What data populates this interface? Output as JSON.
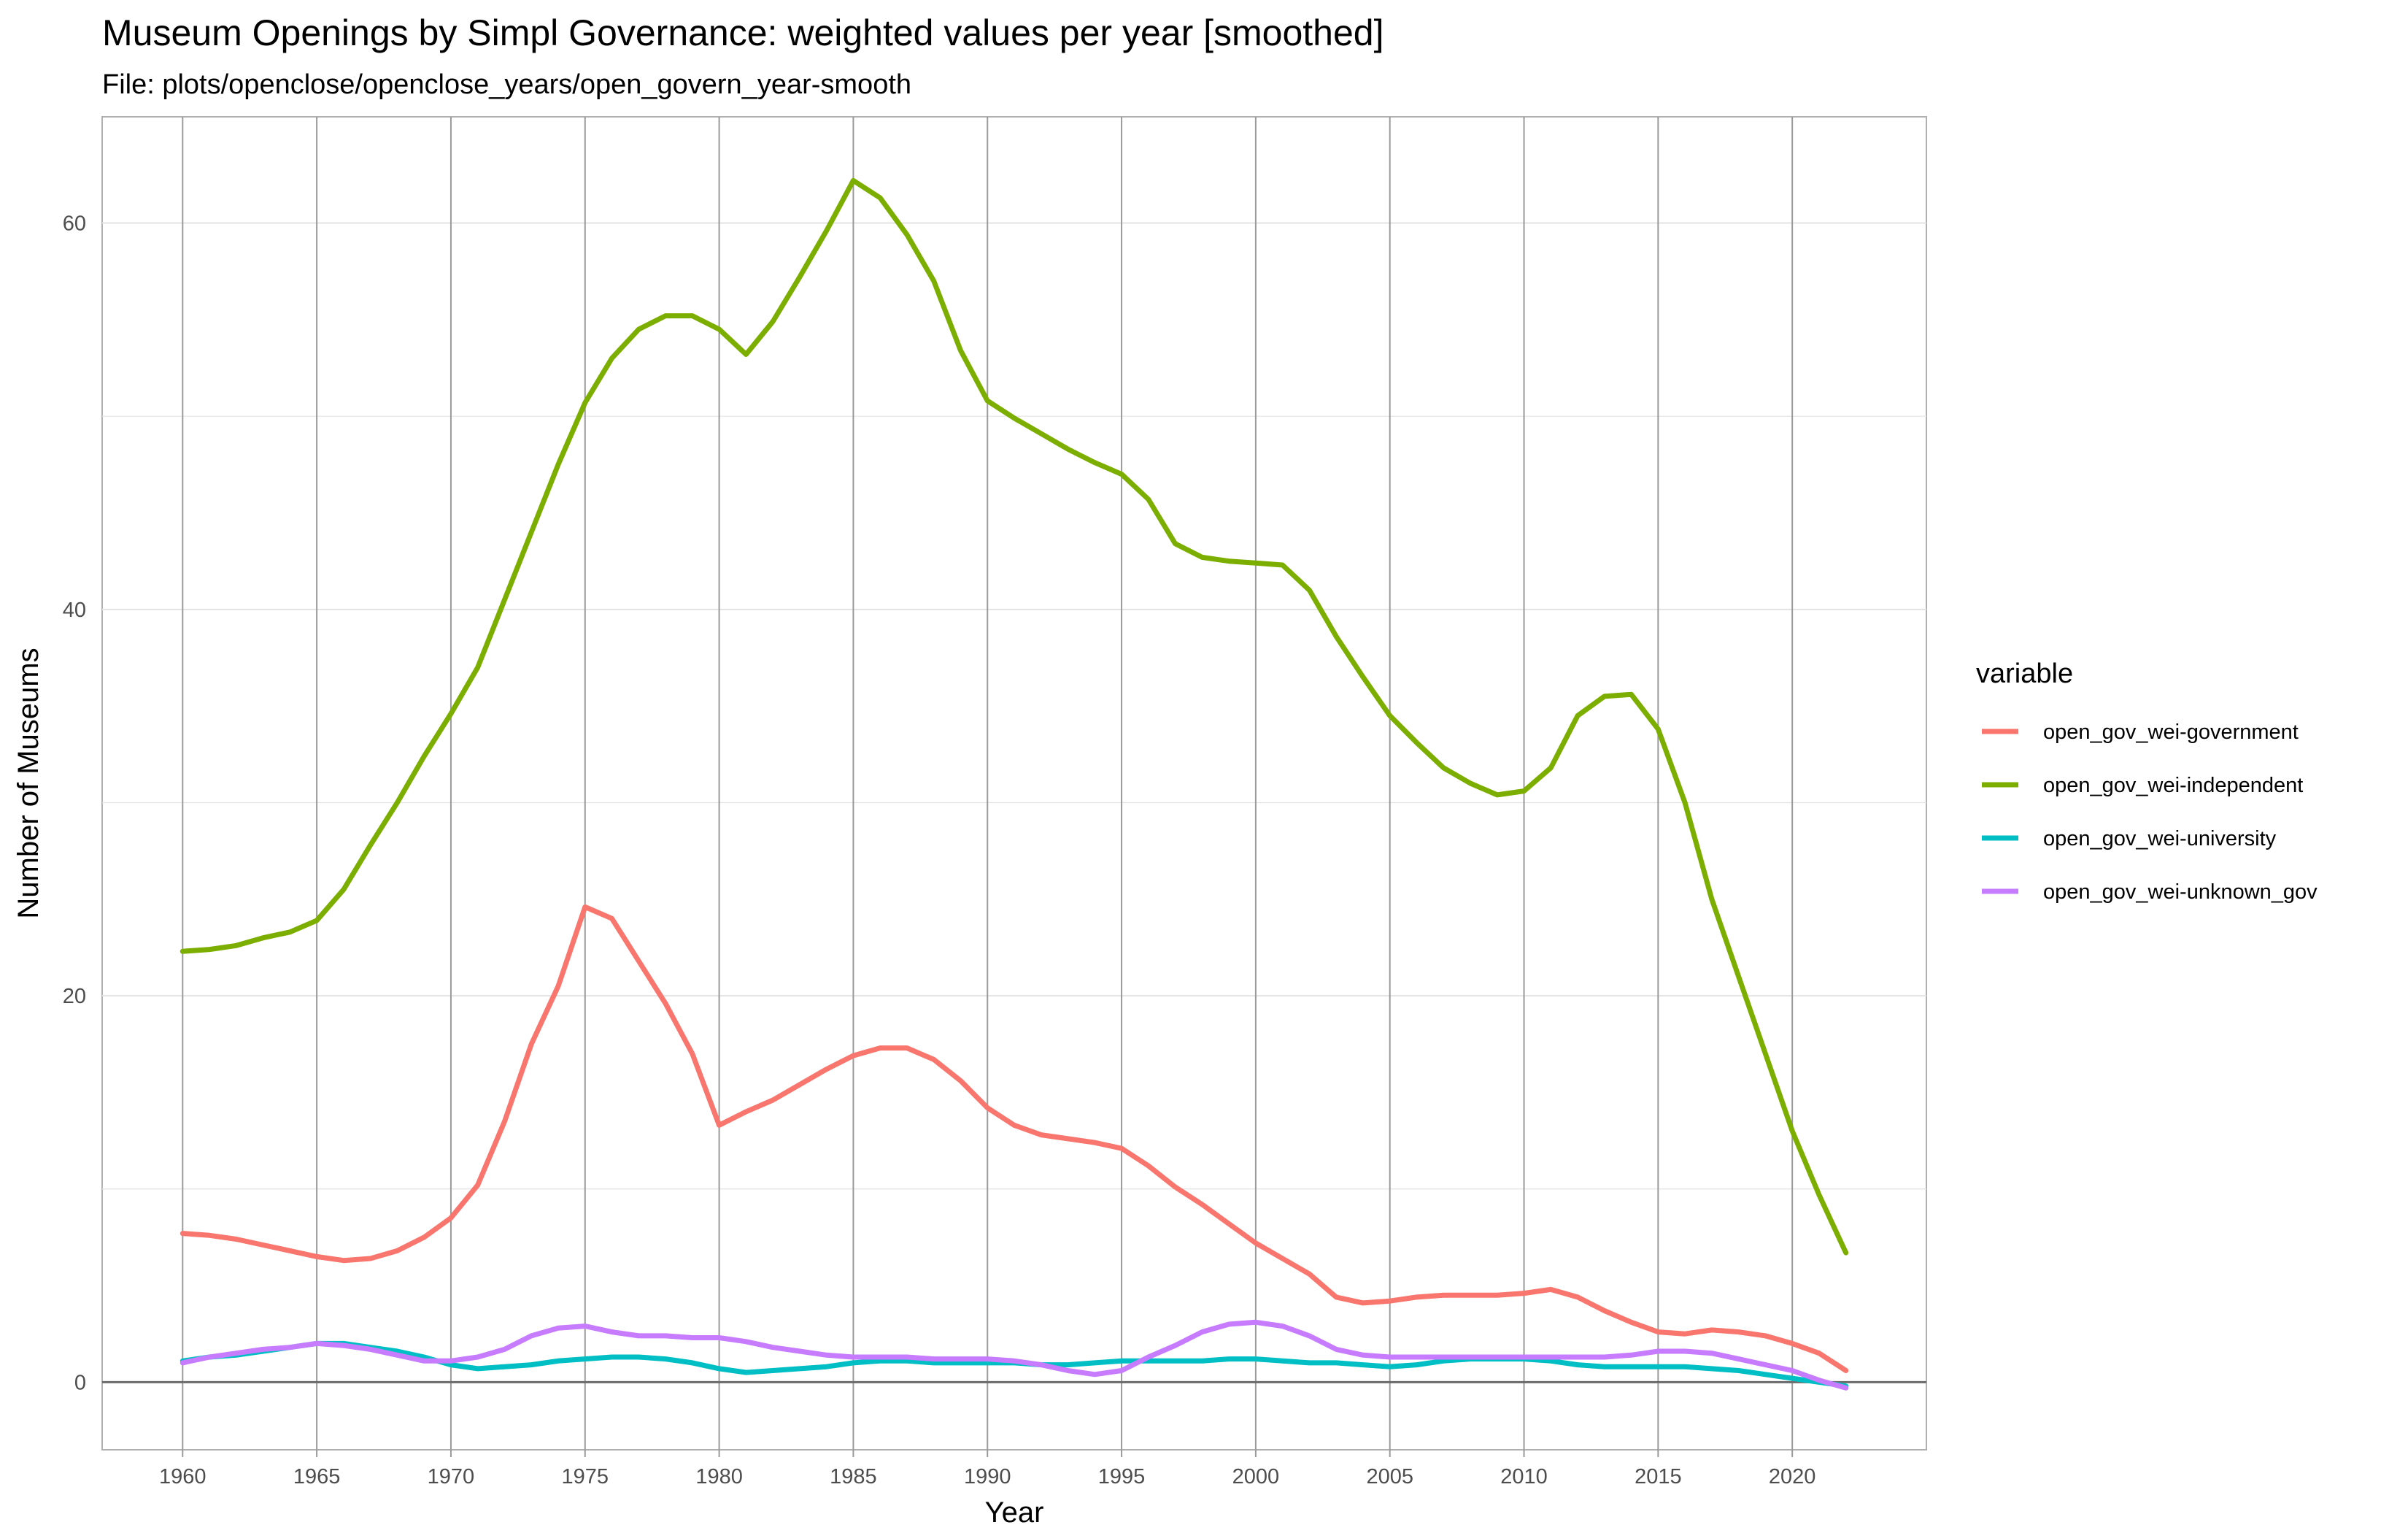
{
  "chart_data": {
    "type": "line",
    "title": "Museum Openings by Simpl Governance: weighted values per year [smoothed]",
    "subtitle": "File: plots/openclose/openclose_years/open_govern_year-smooth",
    "xlabel": "Year",
    "ylabel": "Number of Museums",
    "xlim": [
      1957,
      2025
    ],
    "ylim": [
      -3.5,
      65.5
    ],
    "x_ticks": [
      1960,
      1965,
      1970,
      1975,
      1980,
      1985,
      1990,
      1995,
      2000,
      2005,
      2010,
      2015,
      2020
    ],
    "y_ticks": [
      0,
      20,
      40,
      60
    ],
    "x_grid_color": "#9a9a9a",
    "y_grid_color": "#e3e3e3",
    "legend": {
      "title": "variable",
      "position": "right"
    },
    "series": [
      {
        "name": "open_gov_wei-government",
        "color": "#F8766D",
        "x": [
          1960,
          1961,
          1962,
          1963,
          1964,
          1965,
          1966,
          1967,
          1968,
          1969,
          1970,
          1971,
          1972,
          1973,
          1974,
          1975,
          1976,
          1977,
          1978,
          1979,
          1980,
          1981,
          1982,
          1983,
          1984,
          1985,
          1986,
          1987,
          1988,
          1989,
          1990,
          1991,
          1992,
          1993,
          1994,
          1995,
          1996,
          1997,
          1998,
          1999,
          2000,
          2001,
          2002,
          2003,
          2004,
          2005,
          2006,
          2007,
          2008,
          2009,
          2010,
          2011,
          2012,
          2013,
          2014,
          2015,
          2016,
          2017,
          2018,
          2019,
          2020,
          2021,
          2022
        ],
        "y": [
          7.7,
          7.6,
          7.4,
          7.1,
          6.8,
          6.5,
          6.3,
          6.4,
          6.8,
          7.5,
          8.5,
          10.2,
          13.5,
          17.5,
          20.5,
          24.6,
          24.0,
          21.8,
          19.6,
          17.0,
          13.3,
          14.0,
          14.6,
          15.4,
          16.2,
          16.9,
          17.3,
          17.3,
          16.7,
          15.6,
          14.2,
          13.3,
          12.8,
          12.6,
          12.4,
          12.1,
          11.2,
          10.1,
          9.2,
          8.2,
          7.2,
          6.4,
          5.6,
          4.4,
          4.1,
          4.2,
          4.4,
          4.5,
          4.5,
          4.5,
          4.6,
          4.8,
          4.4,
          3.7,
          3.1,
          2.6,
          2.5,
          2.7,
          2.6,
          2.4,
          2.0,
          1.5,
          0.6
        ]
      },
      {
        "name": "open_gov_wei-independent",
        "color": "#7CAE00",
        "x": [
          1960,
          1961,
          1962,
          1963,
          1964,
          1965,
          1966,
          1967,
          1968,
          1969,
          1970,
          1971,
          1972,
          1973,
          1974,
          1975,
          1976,
          1977,
          1978,
          1979,
          1980,
          1981,
          1982,
          1983,
          1984,
          1985,
          1986,
          1987,
          1988,
          1989,
          1990,
          1991,
          1992,
          1993,
          1994,
          1995,
          1996,
          1997,
          1998,
          1999,
          2000,
          2001,
          2002,
          2003,
          2004,
          2005,
          2006,
          2007,
          2008,
          2009,
          2010,
          2011,
          2012,
          2013,
          2014,
          2015,
          2016,
          2017,
          2018,
          2019,
          2020,
          2021,
          2022
        ],
        "y": [
          22.3,
          22.4,
          22.6,
          23.0,
          23.3,
          23.9,
          25.5,
          27.8,
          30.0,
          32.4,
          34.6,
          37.0,
          40.5,
          44.0,
          47.5,
          50.7,
          53.0,
          54.5,
          55.2,
          55.2,
          54.5,
          53.2,
          54.9,
          57.2,
          59.6,
          62.2,
          61.3,
          59.4,
          57.0,
          53.4,
          50.8,
          49.9,
          49.1,
          48.3,
          47.6,
          47.0,
          45.7,
          43.4,
          42.7,
          42.5,
          42.4,
          42.3,
          41.0,
          38.6,
          36.5,
          34.5,
          33.1,
          31.8,
          31.0,
          30.4,
          30.6,
          31.8,
          34.5,
          35.5,
          35.6,
          33.8,
          30.0,
          25.0,
          21.0,
          17.0,
          13.0,
          9.7,
          6.7
        ]
      },
      {
        "name": "open_gov_wei-university",
        "color": "#00BFC4",
        "x": [
          1960,
          1961,
          1962,
          1963,
          1964,
          1965,
          1966,
          1967,
          1968,
          1969,
          1970,
          1971,
          1972,
          1973,
          1974,
          1975,
          1976,
          1977,
          1978,
          1979,
          1980,
          1981,
          1982,
          1983,
          1984,
          1985,
          1986,
          1987,
          1988,
          1989,
          1990,
          1991,
          1992,
          1993,
          1994,
          1995,
          1996,
          1997,
          1998,
          1999,
          2000,
          2001,
          2002,
          2003,
          2004,
          2005,
          2006,
          2007,
          2008,
          2009,
          2010,
          2011,
          2012,
          2013,
          2014,
          2015,
          2016,
          2017,
          2018,
          2019,
          2020,
          2021,
          2022
        ],
        "y": [
          1.1,
          1.3,
          1.4,
          1.6,
          1.8,
          2.0,
          2.0,
          1.8,
          1.6,
          1.3,
          0.9,
          0.7,
          0.8,
          0.9,
          1.1,
          1.2,
          1.3,
          1.3,
          1.2,
          1.0,
          0.7,
          0.5,
          0.6,
          0.7,
          0.8,
          1.0,
          1.1,
          1.1,
          1.0,
          1.0,
          1.0,
          1.0,
          0.9,
          0.9,
          1.0,
          1.1,
          1.1,
          1.1,
          1.1,
          1.2,
          1.2,
          1.1,
          1.0,
          1.0,
          0.9,
          0.8,
          0.9,
          1.1,
          1.2,
          1.2,
          1.2,
          1.1,
          0.9,
          0.8,
          0.8,
          0.8,
          0.8,
          0.7,
          0.6,
          0.4,
          0.2,
          0.0,
          -0.2
        ]
      },
      {
        "name": "open_gov_wei-unknown_gov",
        "color": "#C77CFF",
        "x": [
          1960,
          1961,
          1962,
          1963,
          1964,
          1965,
          1966,
          1967,
          1968,
          1969,
          1970,
          1971,
          1972,
          1973,
          1974,
          1975,
          1976,
          1977,
          1978,
          1979,
          1980,
          1981,
          1982,
          1983,
          1984,
          1985,
          1986,
          1987,
          1988,
          1989,
          1990,
          1991,
          1992,
          1993,
          1994,
          1995,
          1996,
          1997,
          1998,
          1999,
          2000,
          2001,
          2002,
          2003,
          2004,
          2005,
          2006,
          2007,
          2008,
          2009,
          2010,
          2011,
          2012,
          2013,
          2014,
          2015,
          2016,
          2017,
          2018,
          2019,
          2020,
          2021,
          2022
        ],
        "y": [
          1.0,
          1.3,
          1.5,
          1.7,
          1.8,
          2.0,
          1.9,
          1.7,
          1.4,
          1.1,
          1.1,
          1.3,
          1.7,
          2.4,
          2.8,
          2.9,
          2.6,
          2.4,
          2.4,
          2.3,
          2.3,
          2.1,
          1.8,
          1.6,
          1.4,
          1.3,
          1.3,
          1.3,
          1.2,
          1.2,
          1.2,
          1.1,
          0.9,
          0.6,
          0.4,
          0.6,
          1.3,
          1.9,
          2.6,
          3.0,
          3.1,
          2.9,
          2.4,
          1.7,
          1.4,
          1.3,
          1.3,
          1.3,
          1.3,
          1.3,
          1.3,
          1.3,
          1.3,
          1.3,
          1.4,
          1.6,
          1.6,
          1.5,
          1.2,
          0.9,
          0.6,
          0.1,
          -0.3
        ]
      }
    ]
  }
}
